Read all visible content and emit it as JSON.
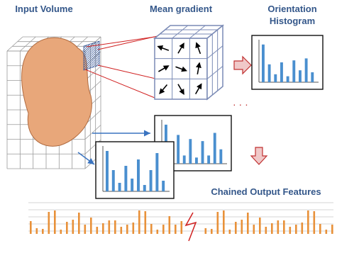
{
  "labels": {
    "input_volume": "Input Volume",
    "mean_gradient": "Mean gradient",
    "orientation_histogram": [
      "Orientation",
      "Histogram"
    ],
    "chained_output": "Chained Output Features"
  }
}
